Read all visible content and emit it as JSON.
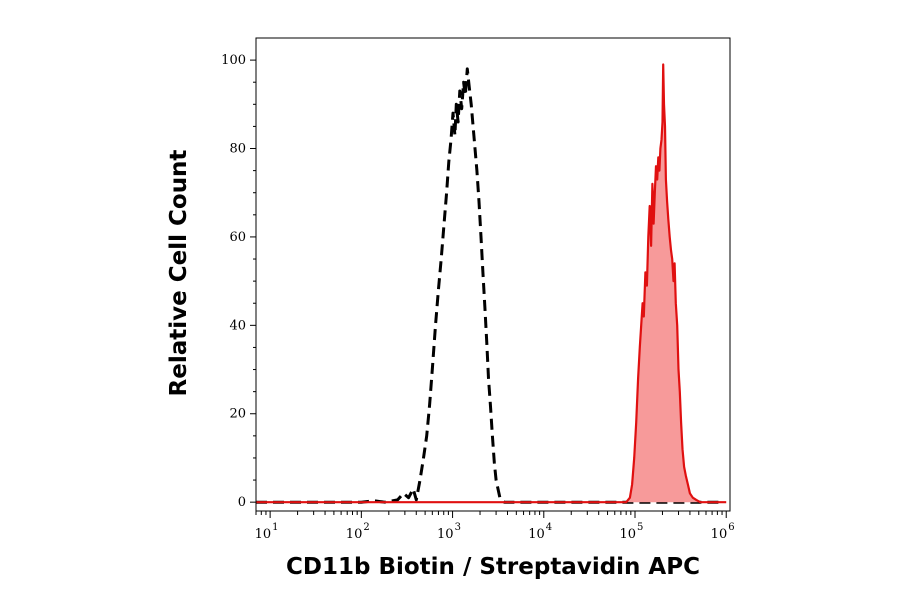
{
  "chart_data": {
    "type": "area",
    "title": "",
    "xlabel": "CD11b Biotin / Streptavidin APC",
    "ylabel": "Relative Cell Count",
    "x_scale": "log",
    "xlim": [
      7,
      1100000
    ],
    "ylim": [
      -2,
      105
    ],
    "x_ticks": [
      {
        "base": "10",
        "exp": "1",
        "value": 10
      },
      {
        "base": "10",
        "exp": "2",
        "value": 100
      },
      {
        "base": "10",
        "exp": "3",
        "value": 1000
      },
      {
        "base": "10",
        "exp": "4",
        "value": 10000
      },
      {
        "base": "10",
        "exp": "5",
        "value": 100000
      },
      {
        "base": "10",
        "exp": "6",
        "value": 1000000
      }
    ],
    "y_ticks": [
      "0",
      "20",
      "40",
      "60",
      "80",
      "100"
    ],
    "grid": false,
    "series": [
      {
        "style": "dashed",
        "color": "#000000",
        "fill": "none",
        "points": [
          [
            7,
            0
          ],
          [
            100,
            0
          ],
          [
            140,
            0.3
          ],
          [
            180,
            0
          ],
          [
            250,
            0.5
          ],
          [
            290,
            2
          ],
          [
            330,
            1
          ],
          [
            370,
            3
          ],
          [
            400,
            0.5
          ],
          [
            440,
            5
          ],
          [
            480,
            10
          ],
          [
            520,
            15
          ],
          [
            560,
            22
          ],
          [
            600,
            30
          ],
          [
            650,
            40
          ],
          [
            700,
            48
          ],
          [
            750,
            55
          ],
          [
            800,
            62
          ],
          [
            860,
            70
          ],
          [
            910,
            77
          ],
          [
            960,
            82
          ],
          [
            1010,
            88
          ],
          [
            1060,
            83
          ],
          [
            1100,
            90
          ],
          [
            1150,
            86
          ],
          [
            1200,
            93
          ],
          [
            1260,
            89
          ],
          [
            1320,
            95
          ],
          [
            1380,
            92
          ],
          [
            1450,
            98
          ],
          [
            1520,
            94
          ],
          [
            1600,
            90
          ],
          [
            1680,
            85
          ],
          [
            1760,
            80
          ],
          [
            1850,
            75
          ],
          [
            1950,
            68
          ],
          [
            2050,
            60
          ],
          [
            2150,
            52
          ],
          [
            2260,
            44
          ],
          [
            2370,
            36
          ],
          [
            2480,
            28
          ],
          [
            2600,
            22
          ],
          [
            2730,
            15
          ],
          [
            2870,
            9
          ],
          [
            3000,
            5
          ],
          [
            3150,
            3
          ],
          [
            3300,
            1
          ],
          [
            3500,
            0.3
          ],
          [
            3700,
            0
          ],
          [
            900000,
            0
          ]
        ]
      },
      {
        "style": "solid",
        "color": "#e01010",
        "fill": "#f79a9a",
        "points": [
          [
            7,
            0
          ],
          [
            80000,
            0
          ],
          [
            88000,
            1
          ],
          [
            93000,
            4
          ],
          [
            98000,
            10
          ],
          [
            103000,
            18
          ],
          [
            108000,
            28
          ],
          [
            113000,
            35
          ],
          [
            117000,
            40
          ],
          [
            121000,
            45
          ],
          [
            125000,
            42
          ],
          [
            130000,
            52
          ],
          [
            135000,
            49
          ],
          [
            140000,
            60
          ],
          [
            145000,
            67
          ],
          [
            150000,
            58
          ],
          [
            155000,
            72
          ],
          [
            160000,
            63
          ],
          [
            165000,
            70
          ],
          [
            170000,
            76
          ],
          [
            175000,
            73
          ],
          [
            180000,
            78
          ],
          [
            185000,
            75
          ],
          [
            190000,
            80
          ],
          [
            195000,
            82
          ],
          [
            200000,
            86
          ],
          [
            204000,
            99
          ],
          [
            208000,
            90
          ],
          [
            213000,
            85
          ],
          [
            218000,
            73
          ],
          [
            225000,
            68
          ],
          [
            232000,
            64
          ],
          [
            240000,
            60
          ],
          [
            248000,
            57
          ],
          [
            256000,
            55
          ],
          [
            264000,
            50
          ],
          [
            272000,
            54
          ],
          [
            280000,
            45
          ],
          [
            290000,
            40
          ],
          [
            300000,
            30
          ],
          [
            310000,
            25
          ],
          [
            320000,
            18
          ],
          [
            332000,
            12
          ],
          [
            345000,
            8
          ],
          [
            360000,
            6
          ],
          [
            380000,
            4
          ],
          [
            400000,
            2
          ],
          [
            430000,
            1
          ],
          [
            470000,
            0.5
          ],
          [
            520000,
            0
          ],
          [
            1000000,
            0
          ]
        ]
      }
    ]
  }
}
